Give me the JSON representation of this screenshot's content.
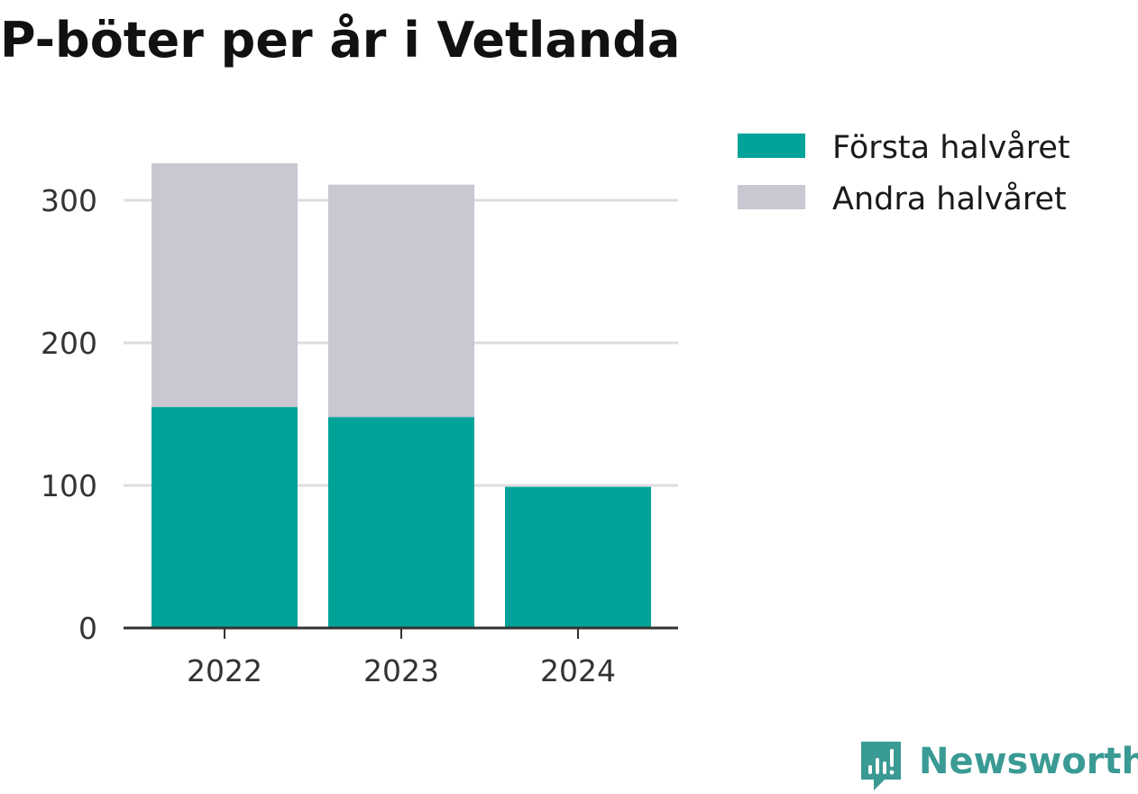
{
  "title": "P-böter per år i Vetlanda",
  "brand": {
    "name": "Newsworthy",
    "icon": "newsworthy-logo-icon"
  },
  "colors": {
    "first_half": "#00a39a",
    "second_half": "#c8c7d2",
    "grid": "#dddddd",
    "axis": "#333333",
    "brand": "#3a9a94"
  },
  "chart_data": {
    "type": "bar",
    "stacked": true,
    "categories": [
      "2022",
      "2023",
      "2024"
    ],
    "series": [
      {
        "name": "Första halvåret",
        "values": [
          155,
          148,
          99
        ]
      },
      {
        "name": "Andra halvåret",
        "values": [
          171,
          163,
          0
        ]
      }
    ],
    "title": "P-böter per år i Vetlanda",
    "xlabel": "",
    "ylabel": "",
    "ylim": [
      0,
      330
    ],
    "yticks": [
      0,
      100,
      200,
      300
    ],
    "grid": true,
    "legend_position": "right"
  }
}
